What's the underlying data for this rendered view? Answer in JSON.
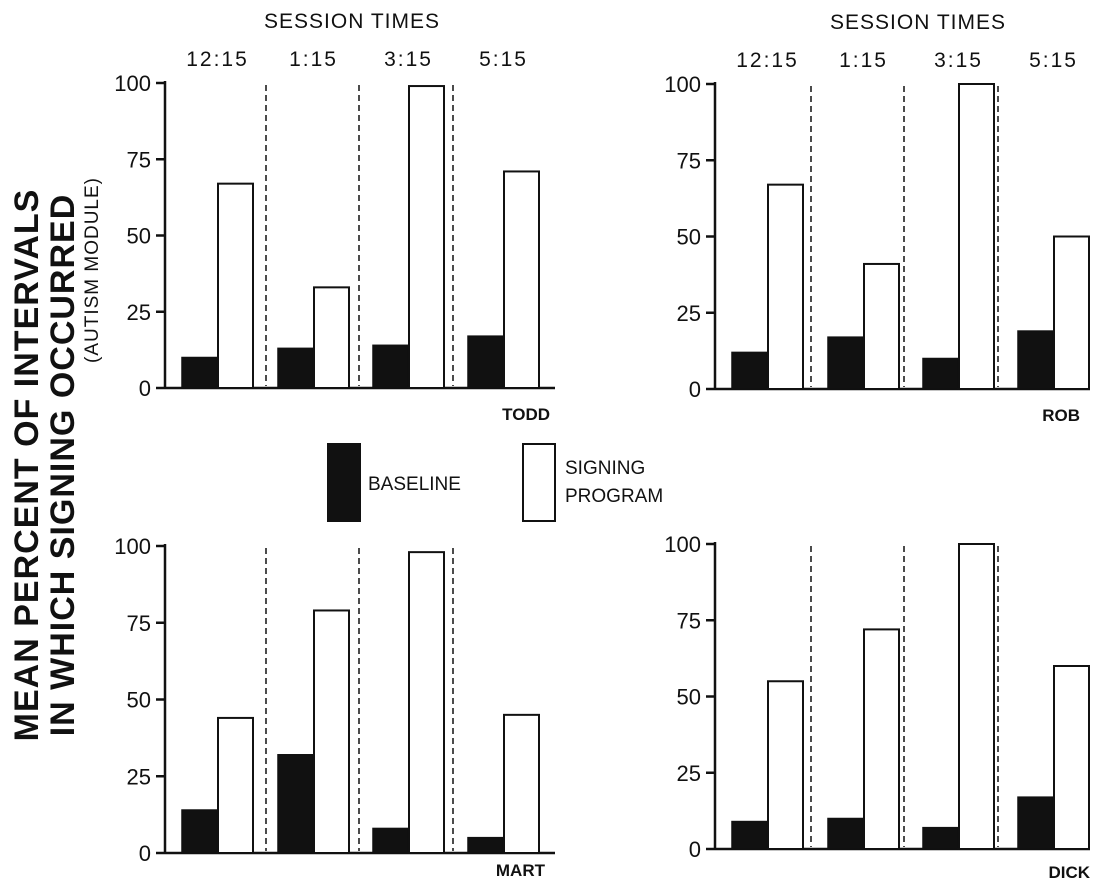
{
  "chart_data": [
    {
      "type": "bar",
      "panel": "TODD",
      "header": "SESSION TIMES",
      "categories": [
        "12:15",
        "1:15",
        "3:15",
        "5:15"
      ],
      "series": [
        {
          "name": "BASELINE",
          "values": [
            10,
            13,
            14,
            17
          ]
        },
        {
          "name": "SIGNING PROGRAM",
          "values": [
            67,
            33,
            99,
            71
          ]
        }
      ],
      "yticks": [
        0,
        25,
        50,
        75,
        100
      ],
      "ylim": [
        0,
        100
      ]
    },
    {
      "type": "bar",
      "panel": "ROB",
      "header": "SESSION TIMES",
      "categories": [
        "12:15",
        "1:15",
        "3:15",
        "5:15"
      ],
      "series": [
        {
          "name": "BASELINE",
          "values": [
            12,
            17,
            10,
            19
          ]
        },
        {
          "name": "SIGNING PROGRAM",
          "values": [
            67,
            41,
            100,
            50
          ]
        }
      ],
      "yticks": [
        0,
        25,
        50,
        75,
        100
      ],
      "ylim": [
        0,
        100
      ]
    },
    {
      "type": "bar",
      "panel": "MART",
      "header": "",
      "categories": [
        "12:15",
        "1:15",
        "3:15",
        "5:15"
      ],
      "series": [
        {
          "name": "BASELINE",
          "values": [
            14,
            32,
            8,
            5
          ]
        },
        {
          "name": "SIGNING PROGRAM",
          "values": [
            44,
            79,
            98,
            45
          ]
        }
      ],
      "yticks": [
        0,
        25,
        50,
        75,
        100
      ],
      "ylim": [
        0,
        100
      ]
    },
    {
      "type": "bar",
      "panel": "DICK",
      "header": "",
      "categories": [
        "12:15",
        "1:15",
        "3:15",
        "5:15"
      ],
      "series": [
        {
          "name": "BASELINE",
          "values": [
            9,
            10,
            7,
            17
          ]
        },
        {
          "name": "SIGNING PROGRAM",
          "values": [
            55,
            72,
            100,
            60
          ]
        }
      ],
      "yticks": [
        0,
        25,
        50,
        75,
        100
      ],
      "ylim": [
        0,
        100
      ]
    }
  ],
  "ylabel": {
    "line1": "MEAN PERCENT OF INTERVALS",
    "line2": "IN WHICH SIGNING OCCURRED",
    "line3": "(AUTISM MODULE)"
  },
  "legend": {
    "baseline": "BASELINE",
    "signing_line1": "SIGNING",
    "signing_line2": "PROGRAM",
    "baseline_color": "#111111",
    "signing_color": "#ffffff"
  }
}
